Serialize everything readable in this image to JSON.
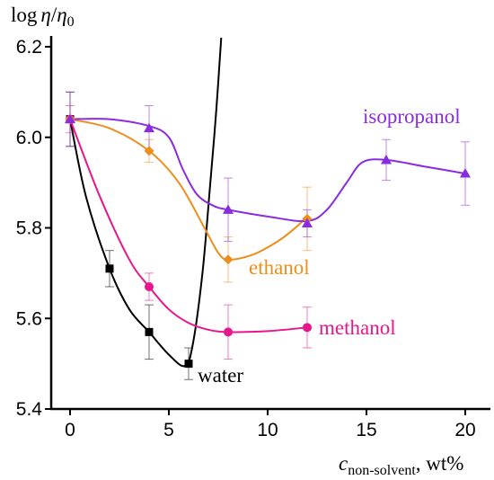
{
  "chart_data": {
    "type": "line",
    "ylabel": {
      "main": "log",
      "eta": "η",
      "slash": "/",
      "eta0": "η",
      "sub0": "0"
    },
    "xlabel": {
      "c": "c",
      "sub": "non-solvent",
      "unit": ", wt%"
    },
    "xlim": [
      -1,
      21.2
    ],
    "ylim": [
      5.4,
      6.2
    ],
    "x_ticks": [
      "0",
      "5",
      "10",
      "15",
      "20"
    ],
    "x_tick_values": [
      0,
      5,
      10,
      15,
      20
    ],
    "y_ticks": [
      "5.4",
      "5.6",
      "5.8",
      "6.0",
      "6.2"
    ],
    "y_tick_values": [
      5.4,
      5.6,
      5.8,
      6.0,
      6.2
    ],
    "grid": false,
    "series": [
      {
        "name": "water",
        "color": "#000000",
        "marker": "square",
        "points": [
          {
            "x": 0,
            "y": 6.04,
            "err": 0.06
          },
          {
            "x": 2,
            "y": 5.71,
            "err": 0.04
          },
          {
            "x": 4,
            "y": 5.57,
            "err": 0.06
          },
          {
            "x": 6,
            "y": 5.5,
            "err": 0.035
          }
        ],
        "curve": [
          [
            0,
            6.04
          ],
          [
            0.8,
            5.87
          ],
          [
            2,
            5.71
          ],
          [
            3,
            5.62
          ],
          [
            4,
            5.57
          ],
          [
            5,
            5.52
          ],
          [
            5.8,
            5.495
          ],
          [
            6.2,
            5.54
          ],
          [
            6.7,
            5.7
          ],
          [
            7.1,
            5.9
          ],
          [
            7.4,
            6.06
          ],
          [
            7.65,
            6.22
          ]
        ]
      },
      {
        "name": "methanol",
        "color": "#e8168c",
        "marker": "circle",
        "points": [
          {
            "x": 0,
            "y": 6.04,
            "err": 0.03
          },
          {
            "x": 4,
            "y": 5.67,
            "err": 0.03
          },
          {
            "x": 8,
            "y": 5.57,
            "err": 0.06
          },
          {
            "x": 12,
            "y": 5.58,
            "err": 0.045
          }
        ],
        "curve": [
          [
            0,
            6.04
          ],
          [
            1.5,
            5.87
          ],
          [
            3,
            5.73
          ],
          [
            4,
            5.67
          ],
          [
            5,
            5.62
          ],
          [
            6,
            5.59
          ],
          [
            7,
            5.575
          ],
          [
            8,
            5.57
          ],
          [
            10,
            5.572
          ],
          [
            12,
            5.58
          ]
        ]
      },
      {
        "name": "ethanol",
        "color": "#f08c1a",
        "marker": "diamond",
        "points": [
          {
            "x": 0,
            "y": 6.04,
            "err": 0.0
          },
          {
            "x": 4,
            "y": 5.97,
            "err": 0.025
          },
          {
            "x": 8,
            "y": 5.73,
            "err": 0.05
          },
          {
            "x": 12,
            "y": 5.82,
            "err": 0.07
          }
        ],
        "curve": [
          [
            0,
            6.04
          ],
          [
            2,
            6.02
          ],
          [
            4,
            5.97
          ],
          [
            5.5,
            5.9
          ],
          [
            6.8,
            5.8
          ],
          [
            7.5,
            5.745
          ],
          [
            8,
            5.73
          ],
          [
            9.2,
            5.74
          ],
          [
            10.5,
            5.77
          ],
          [
            11.4,
            5.8
          ],
          [
            12,
            5.825
          ]
        ]
      },
      {
        "name": "isopropanol",
        "color": "#8a2be2",
        "marker": "triangle",
        "points": [
          {
            "x": 0,
            "y": 6.04,
            "err": 0.06
          },
          {
            "x": 4,
            "y": 6.02,
            "err": 0.05
          },
          {
            "x": 8,
            "y": 5.84,
            "err": 0.07
          },
          {
            "x": 12,
            "y": 5.81,
            "err": 0.03
          },
          {
            "x": 16,
            "y": 5.95,
            "err": 0.045
          },
          {
            "x": 20,
            "y": 5.92,
            "err": 0.07
          }
        ],
        "curve": [
          [
            0,
            6.04
          ],
          [
            2,
            6.04
          ],
          [
            4,
            6.025
          ],
          [
            5,
            6.0
          ],
          [
            5.7,
            5.93
          ],
          [
            6.4,
            5.875
          ],
          [
            7.2,
            5.85
          ],
          [
            8,
            5.84
          ],
          [
            10,
            5.825
          ],
          [
            12,
            5.815
          ],
          [
            13,
            5.84
          ],
          [
            14,
            5.9
          ],
          [
            14.8,
            5.945
          ],
          [
            16,
            5.95
          ],
          [
            18,
            5.935
          ],
          [
            20,
            5.92
          ]
        ]
      }
    ]
  }
}
